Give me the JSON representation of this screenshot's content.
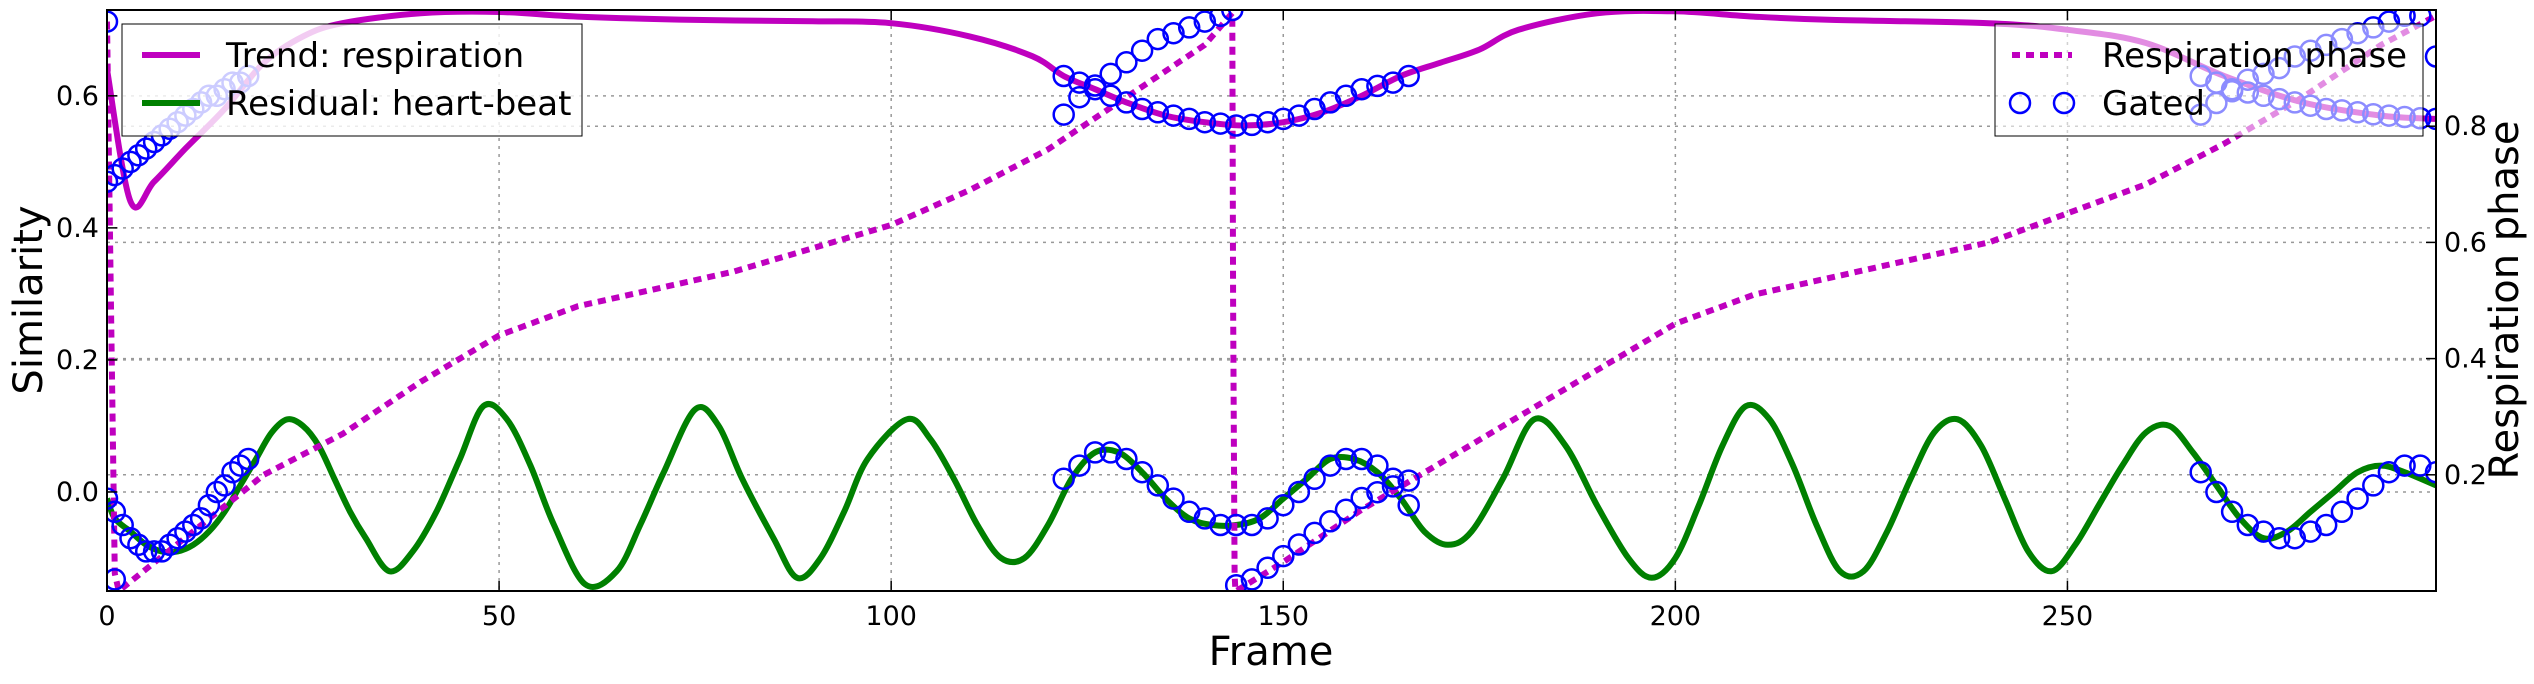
{
  "chart_data": {
    "type": "line",
    "xlabel": "Frame",
    "ylabel": "Similarity",
    "y2label": "Respiration phase",
    "xlim": [
      0,
      297
    ],
    "ylim": [
      -0.15,
      0.73
    ],
    "y2lim": [
      0.0,
      1.0
    ],
    "grid": true,
    "x_ticks": [
      0,
      50,
      100,
      150,
      200,
      250
    ],
    "y_ticks": [
      0.0,
      0.2,
      0.4,
      0.6
    ],
    "y_tick_labels": [
      "0.0",
      "0.2",
      "0.4",
      "0.6"
    ],
    "y2_ticks": [
      0.2,
      0.4,
      0.6,
      0.8
    ],
    "y2_tick_labels": [
      "0.2",
      "0.4",
      "0.6",
      "0.8"
    ],
    "legend_left": {
      "placement": "top-left",
      "entries": [
        {
          "name": "Trend: respiration",
          "color": "#bf00bf",
          "style": "solid"
        },
        {
          "name": "Residual: heart-beat",
          "color": "#008000",
          "style": "solid"
        }
      ]
    },
    "legend_right": {
      "placement": "top-right",
      "entries": [
        {
          "name": "Respiration phase",
          "color": "#bf00bf",
          "style": "dotted"
        },
        {
          "name": "Gated",
          "color": "#0000ff",
          "style": "circle-marker"
        }
      ]
    },
    "series": [
      {
        "name": "Trend: respiration",
        "axis": "left",
        "color": "#bf00bf",
        "x": [
          0,
          3,
          6,
          10,
          15,
          20,
          25,
          30,
          40,
          50,
          60,
          75,
          90,
          100,
          110,
          118,
          122,
          126,
          130,
          135,
          140,
          145,
          150,
          155,
          160,
          165,
          170,
          175,
          180,
          190,
          200,
          210,
          220,
          240,
          250,
          260,
          270,
          280,
          290,
          297
        ],
        "y": [
          0.64,
          0.44,
          0.47,
          0.52,
          0.58,
          0.65,
          0.69,
          0.71,
          0.725,
          0.727,
          0.72,
          0.715,
          0.713,
          0.71,
          0.69,
          0.66,
          0.63,
          0.61,
          0.59,
          0.57,
          0.56,
          0.555,
          0.56,
          0.575,
          0.6,
          0.63,
          0.65,
          0.67,
          0.7,
          0.725,
          0.728,
          0.72,
          0.715,
          0.71,
          0.7,
          0.68,
          0.63,
          0.59,
          0.57,
          0.565
        ]
      },
      {
        "name": "Residual: heart-beat",
        "axis": "left",
        "color": "#008000",
        "x": [
          0,
          1,
          3,
          5,
          7,
          9,
          11,
          13,
          15,
          17,
          19,
          21,
          23,
          25,
          27,
          29,
          31,
          33,
          36,
          39,
          42,
          45,
          48,
          51,
          54,
          57,
          61,
          65,
          68,
          71,
          75,
          78,
          81,
          85,
          88,
          91,
          94,
          97,
          102,
          105,
          108,
          111,
          114,
          117,
          120,
          123,
          126,
          129,
          132,
          135,
          138,
          141,
          144,
          147,
          150,
          153,
          156,
          159,
          162,
          165,
          168,
          171,
          174,
          178,
          182,
          186,
          190,
          194,
          197,
          200,
          203,
          206,
          209,
          212,
          215,
          218,
          221,
          224,
          227,
          230,
          233,
          236,
          239,
          242,
          245,
          248,
          251,
          254,
          257,
          260,
          263,
          266,
          269,
          272,
          275,
          278,
          281,
          284,
          287,
          290,
          293,
          297
        ],
        "y": [
          -0.01,
          -0.04,
          -0.06,
          -0.08,
          -0.09,
          -0.09,
          -0.08,
          -0.06,
          -0.03,
          0.01,
          0.05,
          0.09,
          0.11,
          0.1,
          0.07,
          0.02,
          -0.03,
          -0.07,
          -0.12,
          -0.09,
          -0.03,
          0.05,
          0.13,
          0.11,
          0.04,
          -0.05,
          -0.14,
          -0.12,
          -0.05,
          0.03,
          0.125,
          0.1,
          0.02,
          -0.07,
          -0.13,
          -0.1,
          -0.03,
          0.05,
          0.11,
          0.08,
          0.02,
          -0.05,
          -0.1,
          -0.1,
          -0.05,
          0.02,
          0.06,
          0.06,
          0.03,
          -0.01,
          -0.04,
          -0.05,
          -0.05,
          -0.04,
          -0.01,
          0.02,
          0.05,
          0.05,
          0.03,
          -0.01,
          -0.06,
          -0.08,
          -0.06,
          0.02,
          0.11,
          0.07,
          -0.02,
          -0.1,
          -0.13,
          -0.1,
          -0.02,
          0.07,
          0.13,
          0.11,
          0.04,
          -0.05,
          -0.12,
          -0.12,
          -0.06,
          0.02,
          0.09,
          0.11,
          0.07,
          -0.01,
          -0.09,
          -0.12,
          -0.08,
          -0.02,
          0.04,
          0.09,
          0.1,
          0.06,
          0.01,
          -0.04,
          -0.07,
          -0.06,
          -0.03,
          0.0,
          0.03,
          0.04,
          0.03,
          0.01
        ]
      },
      {
        "name": "Respiration phase",
        "axis": "right",
        "color": "#bf00bf",
        "style": "dotted",
        "x": [
          0,
          0.5,
          1,
          1.5,
          20,
          30,
          40,
          50,
          60,
          70,
          80,
          90,
          100,
          110,
          120,
          130,
          140,
          143.5,
          143.6,
          143.8,
          143.9,
          144,
          150,
          160,
          170,
          180,
          190,
          200,
          210,
          220,
          230,
          240,
          250,
          260,
          270,
          280,
          290,
          297
        ],
        "y": [
          0.98,
          0.5,
          0.03,
          0.0,
          0.2,
          0.27,
          0.36,
          0.44,
          0.49,
          0.52,
          0.55,
          0.59,
          0.63,
          0.69,
          0.76,
          0.85,
          0.94,
          0.995,
          0.5,
          0.03,
          0.0,
          0.0,
          0.05,
          0.14,
          0.22,
          0.3,
          0.38,
          0.46,
          0.51,
          0.54,
          0.57,
          0.6,
          0.65,
          0.7,
          0.77,
          0.85,
          0.94,
          0.99
        ]
      },
      {
        "name": "Gated (trend)",
        "axis": "left",
        "color": "#0000ff",
        "marker": "circle",
        "x": [
          0,
          1,
          2,
          3,
          4,
          5,
          6,
          7,
          8,
          9,
          10,
          11,
          12,
          13,
          14,
          15,
          16,
          17,
          18,
          122,
          124,
          126,
          128,
          130,
          132,
          134,
          136,
          138,
          140,
          142,
          144,
          146,
          148,
          150,
          152,
          154,
          156,
          158,
          160,
          162,
          164,
          166,
          267,
          269,
          271,
          273,
          275,
          277,
          279,
          281,
          283,
          285,
          287,
          289,
          291,
          293,
          295,
          297
        ],
        "y": [
          0.47,
          0.48,
          0.49,
          0.5,
          0.51,
          0.52,
          0.53,
          0.54,
          0.55,
          0.56,
          0.57,
          0.58,
          0.59,
          0.6,
          0.6,
          0.61,
          0.62,
          0.62,
          0.63,
          0.63,
          0.62,
          0.61,
          0.6,
          0.59,
          0.58,
          0.575,
          0.57,
          0.565,
          0.56,
          0.558,
          0.555,
          0.556,
          0.56,
          0.565,
          0.57,
          0.58,
          0.59,
          0.6,
          0.61,
          0.615,
          0.62,
          0.63,
          0.63,
          0.62,
          0.61,
          0.605,
          0.6,
          0.595,
          0.59,
          0.585,
          0.58,
          0.578,
          0.575,
          0.572,
          0.57,
          0.568,
          0.566,
          0.565
        ]
      },
      {
        "name": "Gated (heart-beat)",
        "axis": "left",
        "color": "#0000ff",
        "marker": "circle",
        "x": [
          0,
          1,
          2,
          3,
          4,
          5,
          6,
          7,
          8,
          9,
          10,
          11,
          12,
          13,
          14,
          15,
          16,
          17,
          18,
          122,
          124,
          126,
          128,
          130,
          132,
          134,
          136,
          138,
          140,
          142,
          144,
          146,
          148,
          150,
          152,
          154,
          156,
          158,
          160,
          162,
          164,
          166,
          267,
          269,
          271,
          273,
          275,
          277,
          279,
          281,
          283,
          285,
          287,
          289,
          291,
          293,
          295,
          297
        ],
        "y": [
          -0.01,
          -0.03,
          -0.05,
          -0.07,
          -0.08,
          -0.09,
          -0.09,
          -0.09,
          -0.08,
          -0.07,
          -0.06,
          -0.05,
          -0.04,
          -0.02,
          0.0,
          0.01,
          0.03,
          0.04,
          0.05,
          0.02,
          0.04,
          0.06,
          0.06,
          0.05,
          0.03,
          0.01,
          -0.01,
          -0.03,
          -0.04,
          -0.05,
          -0.05,
          -0.05,
          -0.04,
          -0.02,
          0.0,
          0.02,
          0.04,
          0.05,
          0.05,
          0.04,
          0.02,
          -0.02,
          0.03,
          0.0,
          -0.03,
          -0.05,
          -0.06,
          -0.07,
          -0.07,
          -0.06,
          -0.05,
          -0.03,
          -0.01,
          0.01,
          0.03,
          0.04,
          0.04,
          0.03
        ]
      },
      {
        "name": "Gated (phase)",
        "axis": "right",
        "color": "#0000ff",
        "marker": "circle",
        "x": [
          0,
          1,
          122,
          124,
          126,
          128,
          130,
          132,
          134,
          136,
          138,
          140,
          142,
          143.5,
          144,
          146,
          148,
          150,
          152,
          154,
          156,
          158,
          160,
          162,
          164,
          166,
          267,
          269,
          271,
          273,
          275,
          277,
          279,
          281,
          283,
          285,
          287,
          289,
          291,
          293,
          295,
          297
        ],
        "y": [
          0.98,
          0.02,
          0.82,
          0.85,
          0.87,
          0.89,
          0.91,
          0.93,
          0.95,
          0.96,
          0.97,
          0.98,
          0.99,
          1.0,
          0.01,
          0.02,
          0.04,
          0.06,
          0.08,
          0.1,
          0.12,
          0.14,
          0.16,
          0.17,
          0.18,
          0.19,
          0.82,
          0.84,
          0.86,
          0.88,
          0.89,
          0.9,
          0.92,
          0.93,
          0.94,
          0.95,
          0.96,
          0.97,
          0.98,
          0.99,
          0.99,
          0.92
        ]
      }
    ]
  }
}
